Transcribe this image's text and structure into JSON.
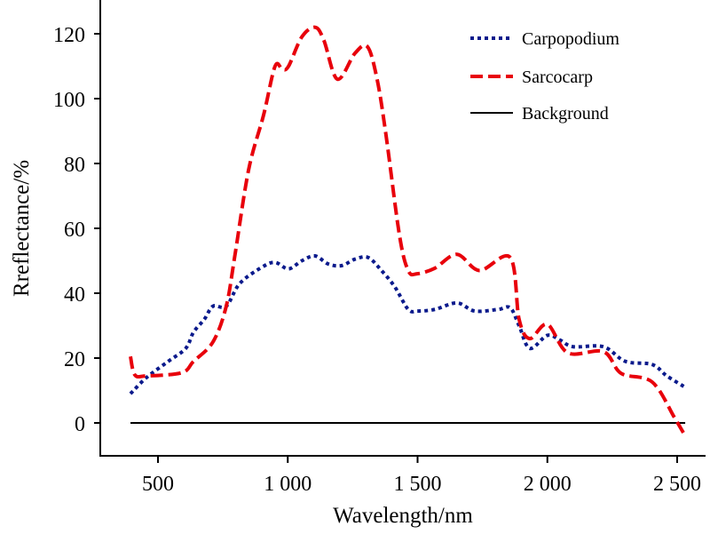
{
  "chart_data": {
    "type": "line",
    "title": "",
    "xlabel": "Wavelength/nm",
    "ylabel": "Rreflectance/%",
    "xlim": [
      300,
      2560
    ],
    "ylim": [
      -10,
      130
    ],
    "x_ticks": [
      500,
      1000,
      1500,
      2000,
      2500
    ],
    "x_tick_labels": [
      "500",
      "1 000",
      "1 500",
      "2 000",
      "2 500"
    ],
    "y_ticks": [
      0,
      20,
      40,
      60,
      80,
      100,
      120
    ],
    "y_tick_labels": [
      "0",
      "20",
      "40",
      "60",
      "80",
      "100",
      "120"
    ],
    "grid": false,
    "legend_position": "top-right",
    "series": [
      {
        "name": "Carpopodium",
        "color": "#0a1a8c",
        "style": "dotted",
        "points": [
          [
            394,
            9
          ],
          [
            456,
            14
          ],
          [
            540,
            19
          ],
          [
            607,
            23
          ],
          [
            637,
            28
          ],
          [
            679,
            32
          ],
          [
            712,
            36
          ],
          [
            763,
            36
          ],
          [
            815,
            43
          ],
          [
            900,
            48
          ],
          [
            951,
            49.5
          ],
          [
            1003,
            47.5
          ],
          [
            1054,
            50
          ],
          [
            1105,
            51.5
          ],
          [
            1156,
            49
          ],
          [
            1207,
            48.5
          ],
          [
            1259,
            50.5
          ],
          [
            1310,
            51
          ],
          [
            1361,
            47
          ],
          [
            1412,
            42
          ],
          [
            1464,
            35
          ],
          [
            1500,
            34.5
          ],
          [
            1566,
            35
          ],
          [
            1652,
            37
          ],
          [
            1720,
            34.5
          ],
          [
            1810,
            35
          ],
          [
            1857,
            35.5
          ],
          [
            1891,
            30
          ],
          [
            1932,
            23
          ],
          [
            2000,
            27
          ],
          [
            2050,
            25.5
          ],
          [
            2100,
            23.5
          ],
          [
            2216,
            23.5
          ],
          [
            2300,
            19
          ],
          [
            2404,
            18
          ],
          [
            2460,
            14.5
          ],
          [
            2531,
            11
          ]
        ]
      },
      {
        "name": "Sarcocarp",
        "color": "#e8000b",
        "style": "dashed",
        "points": [
          [
            394,
            20.5
          ],
          [
            411,
            14.8
          ],
          [
            456,
            14.5
          ],
          [
            592,
            15.5
          ],
          [
            637,
            19
          ],
          [
            712,
            25
          ],
          [
            763,
            36
          ],
          [
            797,
            52
          ],
          [
            849,
            78
          ],
          [
            907,
            95
          ],
          [
            951,
            110
          ],
          [
            979,
            109
          ],
          [
            1003,
            110
          ],
          [
            1054,
            119
          ],
          [
            1105,
            122
          ],
          [
            1139,
            118
          ],
          [
            1191,
            106
          ],
          [
            1259,
            114
          ],
          [
            1307,
            116
          ],
          [
            1344,
            106
          ],
          [
            1378,
            89
          ],
          [
            1430,
            58
          ],
          [
            1464,
            47
          ],
          [
            1498,
            46
          ],
          [
            1566,
            47.7
          ],
          [
            1652,
            52
          ],
          [
            1738,
            47
          ],
          [
            1857,
            51
          ],
          [
            1891,
            32
          ],
          [
            1932,
            26
          ],
          [
            2000,
            30.4
          ],
          [
            2079,
            21.6
          ],
          [
            2216,
            22
          ],
          [
            2284,
            15.3
          ],
          [
            2404,
            12.6
          ],
          [
            2490,
            1.6
          ],
          [
            2531,
            -4
          ]
        ]
      },
      {
        "name": "Background",
        "color": "#000000",
        "style": "solid",
        "points": [
          [
            394,
            0
          ],
          [
            2531,
            0
          ]
        ]
      }
    ]
  }
}
